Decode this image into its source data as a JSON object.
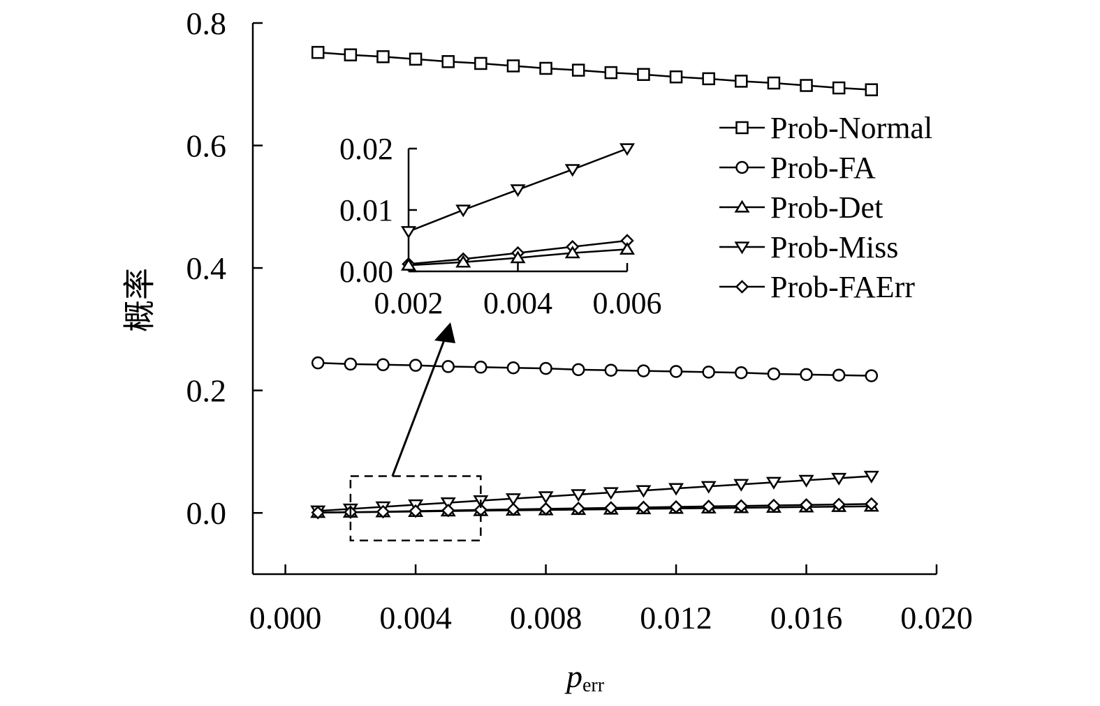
{
  "chart_data": [
    {
      "type": "line",
      "role": "main",
      "xlabel": "p",
      "xlabel_subscript": "err",
      "ylabel": "概率",
      "xlim": [
        -0.001,
        0.02
      ],
      "ylim": [
        -0.1,
        0.8
      ],
      "xticks": [
        0.0,
        0.004,
        0.008,
        0.012,
        0.016,
        0.02
      ],
      "xtick_labels": [
        "0.000",
        "0.004",
        "0.008",
        "0.012",
        "0.016",
        "0.020"
      ],
      "yticks": [
        0.0,
        0.2,
        0.4,
        0.6,
        0.8
      ],
      "ytick_labels": [
        "0.0",
        "0.2",
        "0.4",
        "0.6",
        "0.8"
      ],
      "grid": false,
      "legend_position": "right",
      "x": [
        0.001,
        0.002,
        0.003,
        0.004,
        0.005,
        0.006,
        0.007,
        0.008,
        0.009,
        0.01,
        0.011,
        0.012,
        0.013,
        0.014,
        0.015,
        0.016,
        0.017,
        0.018
      ],
      "series": [
        {
          "name": "Prob-Normal",
          "marker": "square",
          "values": [
            0.752,
            0.748,
            0.745,
            0.741,
            0.737,
            0.734,
            0.73,
            0.726,
            0.723,
            0.719,
            0.716,
            0.712,
            0.709,
            0.705,
            0.702,
            0.698,
            0.694,
            0.691
          ]
        },
        {
          "name": "Prob-FA",
          "marker": "circle",
          "values": [
            0.245,
            0.243,
            0.242,
            0.241,
            0.239,
            0.238,
            0.237,
            0.236,
            0.234,
            0.233,
            0.232,
            0.231,
            0.23,
            0.229,
            0.227,
            0.226,
            0.225,
            0.224
          ]
        },
        {
          "name": "Prob-Det",
          "marker": "triangle-up",
          "values": [
            0.0005,
            0.001,
            0.0015,
            0.0022,
            0.003,
            0.0036,
            0.0042,
            0.0048,
            0.0054,
            0.006,
            0.0066,
            0.0072,
            0.0078,
            0.0084,
            0.009,
            0.0096,
            0.0102,
            0.0108
          ]
        },
        {
          "name": "Prob-Miss",
          "marker": "triangle-down",
          "values": [
            0.0033,
            0.0065,
            0.01,
            0.0133,
            0.0166,
            0.02,
            0.0233,
            0.0266,
            0.03,
            0.0333,
            0.0366,
            0.04,
            0.0433,
            0.0466,
            0.05,
            0.0533,
            0.0566,
            0.06
          ]
        },
        {
          "name": "Prob-FAErr",
          "marker": "diamond",
          "values": [
            0.0005,
            0.0012,
            0.002,
            0.003,
            0.004,
            0.005,
            0.0058,
            0.0066,
            0.0074,
            0.0082,
            0.009,
            0.0098,
            0.0106,
            0.0114,
            0.0122,
            0.013,
            0.0138,
            0.0146
          ]
        }
      ],
      "zoom_box": {
        "xrange": [
          0.002,
          0.006
        ],
        "yrange": [
          -0.045,
          0.06
        ]
      }
    },
    {
      "type": "line",
      "role": "inset",
      "xlim": [
        0.002,
        0.006
      ],
      "ylim": [
        0.0,
        0.02
      ],
      "xticks": [
        0.002,
        0.004,
        0.006
      ],
      "xtick_labels": [
        "0.002",
        "0.004",
        "0.006"
      ],
      "yticks": [
        0.0,
        0.01,
        0.02
      ],
      "ytick_labels": [
        "0.00",
        "0.01",
        "0.02"
      ],
      "x": [
        0.002,
        0.003,
        0.004,
        0.005,
        0.006
      ],
      "series": [
        {
          "name": "Prob-Miss",
          "marker": "triangle-down",
          "values": [
            0.0065,
            0.01,
            0.0133,
            0.0166,
            0.02
          ]
        },
        {
          "name": "Prob-FAErr",
          "marker": "diamond",
          "values": [
            0.0012,
            0.002,
            0.003,
            0.004,
            0.005
          ]
        },
        {
          "name": "Prob-Det",
          "marker": "triangle-up",
          "values": [
            0.001,
            0.0015,
            0.0022,
            0.003,
            0.0036
          ]
        }
      ]
    }
  ]
}
